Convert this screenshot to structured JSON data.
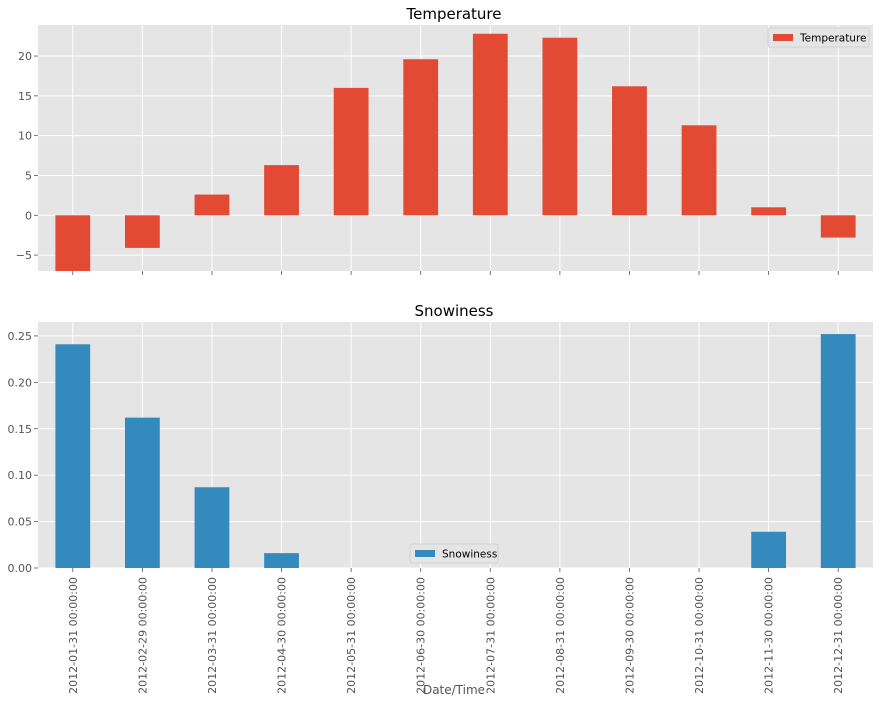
{
  "chart_data": [
    {
      "type": "bar",
      "title": "Temperature",
      "categories": [
        "2012-01-31 00:00:00",
        "2012-02-29 00:00:00",
        "2012-03-31 00:00:00",
        "2012-04-30 00:00:00",
        "2012-05-31 00:00:00",
        "2012-06-30 00:00:00",
        "2012-07-31 00:00:00",
        "2012-08-31 00:00:00",
        "2012-09-30 00:00:00",
        "2012-10-31 00:00:00",
        "2012-11-30 00:00:00",
        "2012-12-31 00:00:00"
      ],
      "series": [
        {
          "name": "Temperature",
          "color": "#E24A33",
          "values": [
            -7.37,
            -4.1,
            2.6,
            6.3,
            16.0,
            19.6,
            22.8,
            22.3,
            16.2,
            11.3,
            1.0,
            -2.8
          ]
        }
      ],
      "ylim": [
        -7.0,
        23.9
      ],
      "yticks": [
        -5,
        0,
        5,
        10,
        15,
        20
      ],
      "ytick_labels": [
        "−5",
        "0",
        "5",
        "10",
        "15",
        "20"
      ],
      "xlabel": "",
      "ylabel": "",
      "legend": "top-right",
      "grid": true
    },
    {
      "type": "bar",
      "title": "Snowiness",
      "categories": [
        "2012-01-31 00:00:00",
        "2012-02-29 00:00:00",
        "2012-03-31 00:00:00",
        "2012-04-30 00:00:00",
        "2012-05-31 00:00:00",
        "2012-06-30 00:00:00",
        "2012-07-31 00:00:00",
        "2012-08-31 00:00:00",
        "2012-09-30 00:00:00",
        "2012-10-31 00:00:00",
        "2012-11-30 00:00:00",
        "2012-12-31 00:00:00"
      ],
      "series": [
        {
          "name": "Snowiness",
          "color": "#348ABD",
          "values": [
            0.241,
            0.162,
            0.087,
            0.016,
            0.0,
            0.0,
            0.0,
            0.0,
            0.0,
            0.0,
            0.039,
            0.252
          ]
        }
      ],
      "ylim": [
        0,
        0.265
      ],
      "yticks": [
        0,
        0.05,
        0.1,
        0.15,
        0.2,
        0.25
      ],
      "ytick_labels": [
        "0.00",
        "0.05",
        "0.10",
        "0.15",
        "0.20",
        "0.25"
      ],
      "xlabel": "Date/Time",
      "ylabel": "",
      "legend": "bottom-center",
      "grid": true
    }
  ],
  "style": {
    "plot_background": "#E5E5E5",
    "grid_color": "#FFFFFF",
    "tick_color": "#555555"
  }
}
